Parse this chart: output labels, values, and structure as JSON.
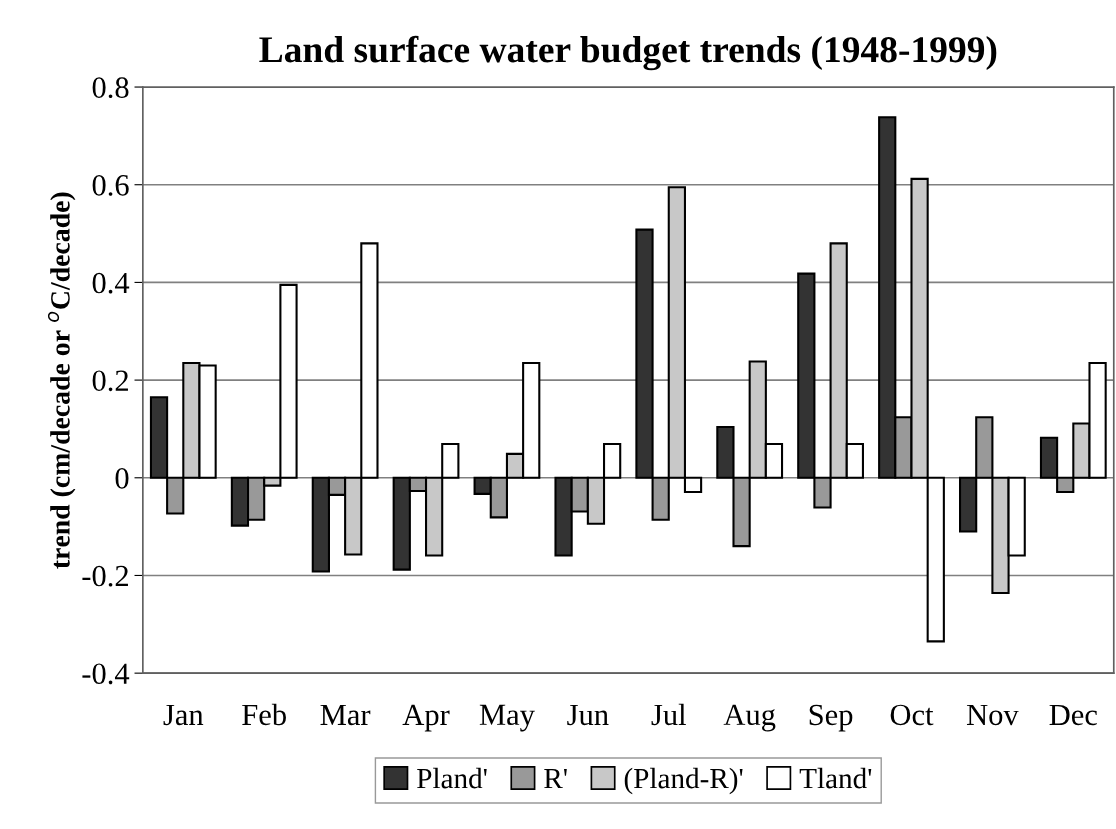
{
  "chart_data": {
    "type": "bar",
    "title": "Land surface water budget trends (1948-1999)",
    "ylabel": "trend (cm/decade or $^{o}$C/decade)",
    "categories": [
      "Jan",
      "Feb",
      "Mar",
      "Apr",
      "May",
      "Jun",
      "Jul",
      "Aug",
      "Sep",
      "Oct",
      "Nov",
      "Dec"
    ],
    "series": [
      {
        "name": "Pland'",
        "color": "#333333",
        "values": [
          0.165,
          -0.098,
          -0.192,
          -0.188,
          -0.033,
          -0.159,
          0.508,
          0.104,
          0.418,
          0.738,
          -0.11,
          0.082
        ]
      },
      {
        "name": "R'",
        "color": "#999999",
        "values": [
          -0.073,
          -0.086,
          -0.035,
          -0.027,
          -0.081,
          -0.069,
          -0.086,
          -0.14,
          -0.061,
          0.124,
          0.124,
          -0.029
        ]
      },
      {
        "name": "(Pland-R)'",
        "color": "#c8c8c8",
        "values": [
          0.235,
          -0.016,
          -0.157,
          -0.159,
          0.049,
          -0.094,
          0.595,
          0.238,
          0.48,
          0.612,
          -0.236,
          0.111
        ]
      },
      {
        "name": "Tland'",
        "color": "#ffffff",
        "values": [
          0.23,
          0.395,
          0.48,
          0.069,
          0.235,
          0.069,
          -0.029,
          0.069,
          0.069,
          -0.335,
          -0.159,
          0.235
        ]
      }
    ],
    "ylim": [
      -0.4,
      0.8
    ],
    "yticks": [
      -0.4,
      -0.2,
      0,
      0.2,
      0.4,
      0.6,
      0.8
    ],
    "grid": "y",
    "legend": "bottom"
  }
}
